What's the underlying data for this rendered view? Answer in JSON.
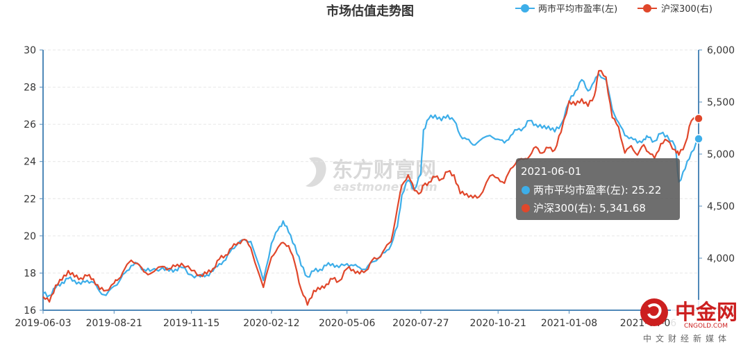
{
  "chart_data": {
    "type": "line",
    "title": "市场估值走势图",
    "legend_position": "top-right",
    "grid": true,
    "x_ticks": [
      "2019-06-03",
      "2019-08-21",
      "2019-11-15",
      "2020-02-12",
      "2020-05-06",
      "2020-07-27",
      "2020-10-21",
      "2021-01-08",
      "2021-04-06"
    ],
    "y_left": {
      "min": 16,
      "max": 30,
      "ticks": [
        "16",
        "18",
        "20",
        "22",
        "24",
        "26",
        "28",
        "30"
      ]
    },
    "y_right": {
      "min": 3500,
      "max": 6000,
      "ticks": [
        "3,500",
        "4,000",
        "4,500",
        "5,000",
        "5,500",
        "6,000"
      ]
    },
    "series": [
      {
        "name": "两市平均市盈率(左)",
        "axis": "left",
        "color": "#3daee9",
        "points": [
          [
            "2019-06-03",
            16.9
          ],
          [
            "2019-06-10",
            16.8
          ],
          [
            "2019-06-17",
            17.2
          ],
          [
            "2019-06-24",
            17.5
          ],
          [
            "2019-07-01",
            17.7
          ],
          [
            "2019-07-08",
            17.6
          ],
          [
            "2019-07-15",
            17.4
          ],
          [
            "2019-07-22",
            17.6
          ],
          [
            "2019-07-29",
            17.5
          ],
          [
            "2019-08-05",
            17.0
          ],
          [
            "2019-08-12",
            16.8
          ],
          [
            "2019-08-21",
            17.3
          ],
          [
            "2019-08-26",
            17.5
          ],
          [
            "2019-09-02",
            18.0
          ],
          [
            "2019-09-09",
            18.4
          ],
          [
            "2019-09-16",
            18.5
          ],
          [
            "2019-09-23",
            18.2
          ],
          [
            "2019-09-30",
            18.1
          ],
          [
            "2019-10-14",
            18.3
          ],
          [
            "2019-10-21",
            18.1
          ],
          [
            "2019-10-28",
            18.2
          ],
          [
            "2019-11-04",
            18.3
          ],
          [
            "2019-11-15",
            17.9
          ],
          [
            "2019-11-25",
            17.8
          ],
          [
            "2019-12-02",
            17.9
          ],
          [
            "2019-12-09",
            18.1
          ],
          [
            "2019-12-16",
            18.5
          ],
          [
            "2019-12-23",
            18.7
          ],
          [
            "2019-12-30",
            19.3
          ],
          [
            "2020-01-06",
            19.6
          ],
          [
            "2020-01-13",
            19.8
          ],
          [
            "2020-01-20",
            19.7
          ],
          [
            "2020-02-03",
            17.6
          ],
          [
            "2020-02-12",
            19.6
          ],
          [
            "2020-02-19",
            20.3
          ],
          [
            "2020-02-25",
            20.8
          ],
          [
            "2020-03-02",
            20.2
          ],
          [
            "2020-03-09",
            19.5
          ],
          [
            "2020-03-16",
            18.4
          ],
          [
            "2020-03-23",
            17.8
          ],
          [
            "2020-03-30",
            18.1
          ],
          [
            "2020-04-06",
            18.2
          ],
          [
            "2020-04-13",
            18.4
          ],
          [
            "2020-04-20",
            18.5
          ],
          [
            "2020-04-27",
            18.3
          ],
          [
            "2020-05-06",
            18.5
          ],
          [
            "2020-05-13",
            18.4
          ],
          [
            "2020-05-20",
            18.3
          ],
          [
            "2020-05-27",
            18.2
          ],
          [
            "2020-06-03",
            18.6
          ],
          [
            "2020-06-10",
            18.8
          ],
          [
            "2020-06-17",
            19.1
          ],
          [
            "2020-06-24",
            19.5
          ],
          [
            "2020-07-01",
            20.5
          ],
          [
            "2020-07-06",
            22.2
          ],
          [
            "2020-07-13",
            23.0
          ],
          [
            "2020-07-20",
            22.5
          ],
          [
            "2020-07-27",
            23.3
          ],
          [
            "2020-07-30",
            25.7
          ],
          [
            "2020-08-05",
            26.3
          ],
          [
            "2020-08-12",
            26.5
          ],
          [
            "2020-08-19",
            26.2
          ],
          [
            "2020-08-26",
            26.5
          ],
          [
            "2020-09-02",
            26.2
          ],
          [
            "2020-09-09",
            25.4
          ],
          [
            "2020-09-16",
            25.2
          ],
          [
            "2020-09-23",
            24.9
          ],
          [
            "2020-09-30",
            25.1
          ],
          [
            "2020-10-12",
            25.4
          ],
          [
            "2020-10-21",
            25.2
          ],
          [
            "2020-10-28",
            25.0
          ],
          [
            "2020-11-04",
            25.4
          ],
          [
            "2020-11-11",
            25.7
          ],
          [
            "2020-11-18",
            25.8
          ],
          [
            "2020-11-25",
            26.2
          ],
          [
            "2020-12-02",
            26.0
          ],
          [
            "2020-12-09",
            25.8
          ],
          [
            "2020-12-16",
            25.9
          ],
          [
            "2020-12-23",
            25.6
          ],
          [
            "2020-12-30",
            26.0
          ],
          [
            "2021-01-08",
            27.2
          ],
          [
            "2021-01-15",
            27.8
          ],
          [
            "2021-01-22",
            28.4
          ],
          [
            "2021-01-29",
            27.8
          ],
          [
            "2021-02-05",
            28.3
          ],
          [
            "2021-02-10",
            28.7
          ],
          [
            "2021-02-18",
            28.4
          ],
          [
            "2021-02-25",
            26.8
          ],
          [
            "2021-03-04",
            26.1
          ],
          [
            "2021-03-11",
            25.4
          ],
          [
            "2021-03-18",
            25.3
          ],
          [
            "2021-03-25",
            25.0
          ],
          [
            "2021-04-01",
            25.2
          ],
          [
            "2021-04-06",
            25.3
          ],
          [
            "2021-04-13",
            25.1
          ],
          [
            "2021-04-20",
            25.5
          ],
          [
            "2021-04-27",
            25.4
          ],
          [
            "2021-05-06",
            24.8
          ],
          [
            "2021-05-10",
            22.9
          ],
          [
            "2021-05-17",
            23.6
          ],
          [
            "2021-05-24",
            24.5
          ],
          [
            "2021-06-01",
            25.22
          ]
        ]
      },
      {
        "name": "沪深300(右)",
        "axis": "right",
        "color": "#e0472b",
        "points": [
          [
            "2019-06-03",
            3630
          ],
          [
            "2019-06-10",
            3580
          ],
          [
            "2019-06-17",
            3740
          ],
          [
            "2019-06-24",
            3790
          ],
          [
            "2019-07-01",
            3880
          ],
          [
            "2019-07-08",
            3820
          ],
          [
            "2019-07-15",
            3810
          ],
          [
            "2019-07-22",
            3830
          ],
          [
            "2019-07-29",
            3800
          ],
          [
            "2019-08-05",
            3700
          ],
          [
            "2019-08-12",
            3690
          ],
          [
            "2019-08-21",
            3760
          ],
          [
            "2019-08-26",
            3800
          ],
          [
            "2019-09-02",
            3900
          ],
          [
            "2019-09-09",
            3980
          ],
          [
            "2019-09-16",
            3950
          ],
          [
            "2019-09-23",
            3870
          ],
          [
            "2019-09-30",
            3850
          ],
          [
            "2019-10-14",
            3920
          ],
          [
            "2019-10-21",
            3900
          ],
          [
            "2019-10-28",
            3920
          ],
          [
            "2019-11-04",
            3950
          ],
          [
            "2019-11-15",
            3880
          ],
          [
            "2019-11-25",
            3840
          ],
          [
            "2019-12-02",
            3850
          ],
          [
            "2019-12-09",
            3900
          ],
          [
            "2019-12-16",
            3990
          ],
          [
            "2019-12-23",
            4030
          ],
          [
            "2019-12-30",
            4100
          ],
          [
            "2020-01-06",
            4150
          ],
          [
            "2020-01-13",
            4180
          ],
          [
            "2020-01-20",
            4100
          ],
          [
            "2020-02-03",
            3720
          ],
          [
            "2020-02-12",
            4010
          ],
          [
            "2020-02-19",
            4100
          ],
          [
            "2020-02-25",
            4150
          ],
          [
            "2020-03-02",
            4120
          ],
          [
            "2020-03-09",
            3950
          ],
          [
            "2020-03-16",
            3700
          ],
          [
            "2020-03-23",
            3550
          ],
          [
            "2020-03-30",
            3690
          ],
          [
            "2020-04-06",
            3700
          ],
          [
            "2020-04-13",
            3750
          ],
          [
            "2020-04-20",
            3800
          ],
          [
            "2020-04-27",
            3780
          ],
          [
            "2020-05-06",
            3900
          ],
          [
            "2020-05-13",
            3890
          ],
          [
            "2020-05-20",
            3850
          ],
          [
            "2020-05-27",
            3880
          ],
          [
            "2020-06-03",
            3980
          ],
          [
            "2020-06-10",
            4000
          ],
          [
            "2020-06-17",
            4090
          ],
          [
            "2020-06-24",
            4160
          ],
          [
            "2020-07-01",
            4480
          ],
          [
            "2020-07-06",
            4700
          ],
          [
            "2020-07-13",
            4800
          ],
          [
            "2020-07-20",
            4650
          ],
          [
            "2020-07-27",
            4630
          ],
          [
            "2020-07-30",
            4700
          ],
          [
            "2020-08-05",
            4730
          ],
          [
            "2020-08-12",
            4780
          ],
          [
            "2020-08-19",
            4760
          ],
          [
            "2020-08-26",
            4830
          ],
          [
            "2020-09-02",
            4800
          ],
          [
            "2020-09-09",
            4620
          ],
          [
            "2020-09-16",
            4620
          ],
          [
            "2020-09-23",
            4580
          ],
          [
            "2020-09-30",
            4590
          ],
          [
            "2020-10-12",
            4790
          ],
          [
            "2020-10-21",
            4770
          ],
          [
            "2020-10-28",
            4720
          ],
          [
            "2020-11-04",
            4860
          ],
          [
            "2020-11-11",
            4930
          ],
          [
            "2020-11-18",
            4950
          ],
          [
            "2020-11-25",
            4980
          ],
          [
            "2020-12-02",
            5070
          ],
          [
            "2020-12-09",
            5010
          ],
          [
            "2020-12-16",
            5060
          ],
          [
            "2020-12-23",
            5040
          ],
          [
            "2020-12-30",
            5210
          ],
          [
            "2021-01-08",
            5510
          ],
          [
            "2021-01-15",
            5470
          ],
          [
            "2021-01-22",
            5530
          ],
          [
            "2021-01-29",
            5460
          ],
          [
            "2021-02-05",
            5560
          ],
          [
            "2021-02-10",
            5800
          ],
          [
            "2021-02-18",
            5740
          ],
          [
            "2021-02-25",
            5350
          ],
          [
            "2021-03-04",
            5260
          ],
          [
            "2021-03-11",
            5010
          ],
          [
            "2021-03-18",
            5080
          ],
          [
            "2021-03-25",
            4990
          ],
          [
            "2021-04-01",
            5090
          ],
          [
            "2021-04-06",
            5020
          ],
          [
            "2021-04-13",
            4960
          ],
          [
            "2021-04-20",
            5100
          ],
          [
            "2021-04-27",
            5130
          ],
          [
            "2021-05-06",
            5040
          ],
          [
            "2021-05-10",
            4990
          ],
          [
            "2021-05-17",
            5100
          ],
          [
            "2021-05-24",
            5320
          ],
          [
            "2021-06-01",
            5341.68
          ]
        ]
      }
    ],
    "tooltip": {
      "date": "2021-06-01",
      "rows": [
        {
          "label": "两市平均市盈率(左): 25.22"
        },
        {
          "label": "沪深300(右): 5,341.68"
        }
      ]
    }
  },
  "watermark": {
    "main": "东方财富网",
    "sub": "eastmoney.com"
  },
  "logo": {
    "main": "中金网",
    "small": "CNGOLD.COM",
    "sub": "中文财经新媒体"
  }
}
